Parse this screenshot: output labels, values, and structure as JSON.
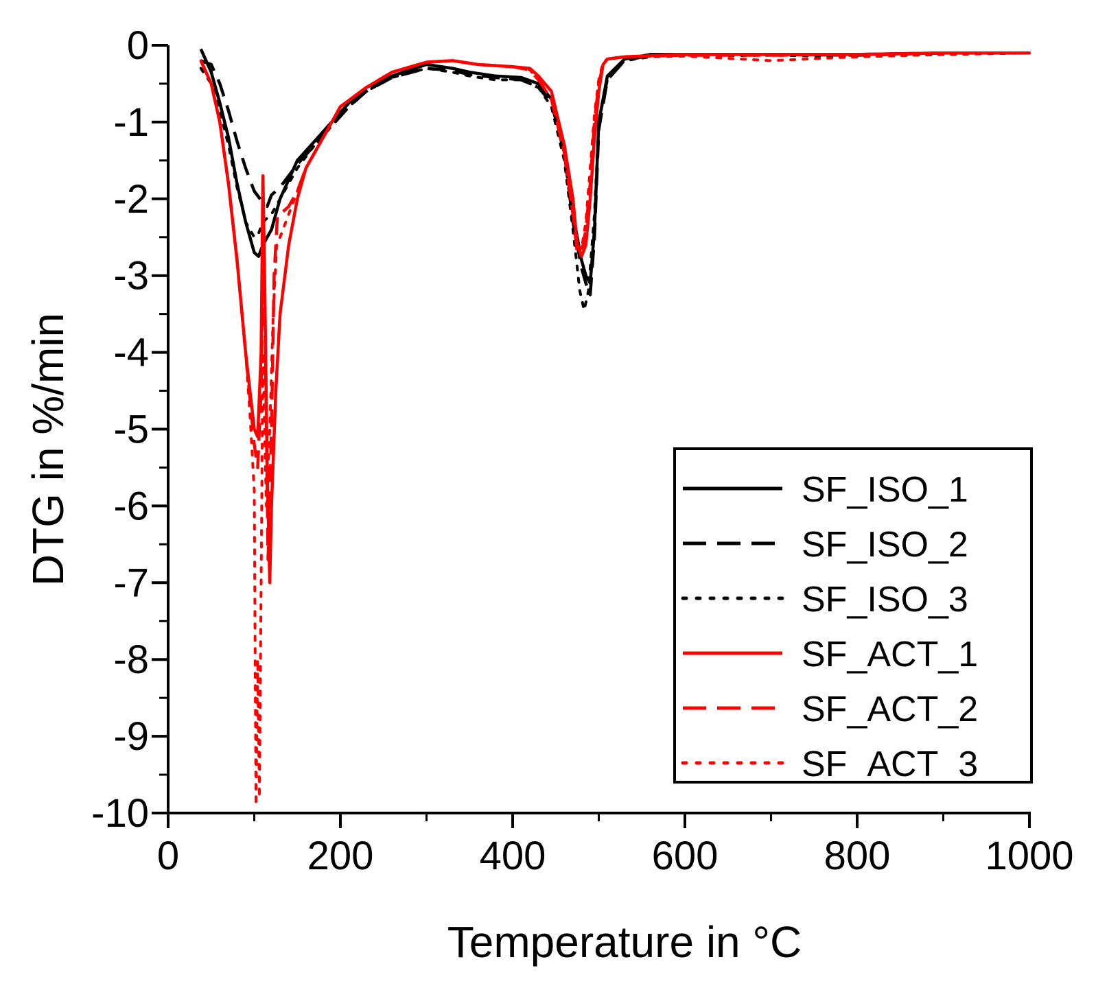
{
  "chart_data": {
    "type": "line",
    "title": "",
    "xlabel": "Temperature in °C",
    "ylabel": "DTG in %/min",
    "xlim": [
      0,
      1000
    ],
    "ylim": [
      -10,
      0
    ],
    "xticks": [
      0,
      200,
      400,
      600,
      800,
      1000
    ],
    "yticks": [
      0,
      -1,
      -2,
      -3,
      -4,
      -5,
      -6,
      -7,
      -8,
      -9,
      -10
    ],
    "xtick_labels": [
      "0",
      "200",
      "400",
      "600",
      "800",
      "1000"
    ],
    "ytick_labels": [
      "0",
      "-1",
      "-2",
      "-3",
      "-4",
      "-5",
      "-6",
      "-7",
      "-8",
      "-9",
      "-10"
    ],
    "grid": false,
    "legend_position": "bottom-right",
    "series": [
      {
        "name": "SF_ISO_1",
        "color": "#000000",
        "style": "solid",
        "x": [
          38,
          50,
          60,
          70,
          80,
          90,
          100,
          105,
          110,
          120,
          130,
          140,
          150,
          170,
          190,
          210,
          230,
          260,
          300,
          330,
          350,
          380,
          410,
          430,
          445,
          460,
          470,
          480,
          485,
          490,
          495,
          500,
          510,
          530,
          560,
          600,
          700,
          800,
          900,
          1000
        ],
        "y": [
          -0.05,
          -0.35,
          -0.75,
          -1.2,
          -1.8,
          -2.3,
          -2.7,
          -2.75,
          -2.6,
          -2.4,
          -2.0,
          -1.75,
          -1.5,
          -1.25,
          -1.0,
          -0.75,
          -0.55,
          -0.4,
          -0.25,
          -0.3,
          -0.35,
          -0.4,
          -0.42,
          -0.5,
          -0.7,
          -1.3,
          -2.2,
          -2.8,
          -3.0,
          -3.1,
          -2.4,
          -1.0,
          -0.4,
          -0.18,
          -0.12,
          -0.12,
          -0.12,
          -0.12,
          -0.1,
          -0.1
        ]
      },
      {
        "name": "SF_ISO_2",
        "color": "#000000",
        "style": "dashed",
        "x": [
          38,
          50,
          60,
          70,
          80,
          90,
          100,
          110,
          115,
          120,
          130,
          140,
          150,
          170,
          190,
          210,
          230,
          260,
          300,
          330,
          350,
          380,
          410,
          430,
          445,
          460,
          470,
          480,
          485,
          490,
          495,
          500,
          510,
          530,
          560,
          600,
          700,
          800,
          900,
          1000
        ],
        "y": [
          -0.2,
          -0.25,
          -0.5,
          -0.85,
          -1.25,
          -1.6,
          -1.9,
          -2.05,
          -2.1,
          -1.95,
          -1.85,
          -1.7,
          -1.55,
          -1.3,
          -1.05,
          -0.8,
          -0.6,
          -0.42,
          -0.3,
          -0.33,
          -0.38,
          -0.42,
          -0.45,
          -0.55,
          -0.75,
          -1.4,
          -2.3,
          -2.9,
          -3.1,
          -3.25,
          -2.5,
          -1.1,
          -0.45,
          -0.2,
          -0.13,
          -0.12,
          -0.12,
          -0.13,
          -0.1,
          -0.1
        ]
      },
      {
        "name": "SF_ISO_3",
        "color": "#000000",
        "style": "dotted",
        "x": [
          38,
          50,
          60,
          70,
          80,
          90,
          100,
          105,
          110,
          120,
          130,
          140,
          150,
          170,
          190,
          210,
          230,
          260,
          300,
          330,
          350,
          380,
          410,
          430,
          445,
          460,
          470,
          478,
          483,
          488,
          495,
          500,
          510,
          530,
          560,
          600,
          700,
          800,
          900,
          1000
        ],
        "y": [
          -0.3,
          -0.5,
          -0.85,
          -1.3,
          -1.85,
          -2.3,
          -2.5,
          -2.45,
          -2.3,
          -2.2,
          -2.0,
          -1.8,
          -1.6,
          -1.3,
          -1.05,
          -0.8,
          -0.6,
          -0.42,
          -0.3,
          -0.35,
          -0.4,
          -0.45,
          -0.45,
          -0.55,
          -0.8,
          -1.5,
          -2.4,
          -3.2,
          -3.45,
          -3.2,
          -2.2,
          -1.0,
          -0.45,
          -0.2,
          -0.15,
          -0.14,
          -0.13,
          -0.15,
          -0.12,
          -0.1
        ]
      },
      {
        "name": "SF_ACT_1",
        "color": "#ff0000",
        "style": "solid",
        "x": [
          38,
          50,
          60,
          70,
          80,
          90,
          95,
          100,
          104,
          108,
          110,
          112,
          115,
          118,
          120,
          125,
          130,
          140,
          150,
          160,
          180,
          200,
          230,
          260,
          300,
          330,
          360,
          400,
          420,
          430,
          445,
          460,
          470,
          475,
          480,
          485,
          490,
          495,
          500,
          505,
          510,
          530,
          600,
          700,
          800,
          900,
          1000
        ],
        "y": [
          -0.2,
          -0.5,
          -1.0,
          -1.8,
          -2.8,
          -4.0,
          -4.5,
          -5.0,
          -5.1,
          -4.0,
          -1.7,
          -3.0,
          -5.5,
          -7.0,
          -6.0,
          -4.5,
          -3.5,
          -2.6,
          -2.0,
          -1.6,
          -1.2,
          -0.8,
          -0.55,
          -0.35,
          -0.22,
          -0.2,
          -0.25,
          -0.28,
          -0.3,
          -0.4,
          -0.6,
          -1.3,
          -2.0,
          -2.6,
          -2.75,
          -2.6,
          -2.0,
          -1.2,
          -0.6,
          -0.25,
          -0.18,
          -0.15,
          -0.12,
          -0.12,
          -0.12,
          -0.1,
          -0.1
        ]
      },
      {
        "name": "SF_ACT_2",
        "color": "#ff0000",
        "style": "dashed",
        "x": [
          38,
          50,
          60,
          70,
          80,
          90,
          95,
          100,
          104,
          108,
          110,
          113,
          116,
          120,
          123,
          127,
          130,
          140,
          150,
          160,
          180,
          200,
          230,
          260,
          300,
          330,
          360,
          400,
          420,
          430,
          445,
          460,
          470,
          475,
          480,
          485,
          490,
          495,
          500,
          505,
          510,
          530,
          600,
          700,
          800,
          900,
          1000
        ],
        "y": [
          -0.2,
          -0.5,
          -1.0,
          -1.8,
          -2.8,
          -4.0,
          -4.6,
          -5.2,
          -5.5,
          -4.5,
          -2.5,
          -4.0,
          -6.7,
          -5.0,
          -3.0,
          -2.2,
          -2.2,
          -2.1,
          -1.9,
          -1.6,
          -1.2,
          -0.8,
          -0.55,
          -0.35,
          -0.22,
          -0.2,
          -0.25,
          -0.28,
          -0.32,
          -0.45,
          -0.7,
          -1.4,
          -2.2,
          -2.7,
          -2.7,
          -2.4,
          -1.8,
          -1.0,
          -0.5,
          -0.25,
          -0.18,
          -0.15,
          -0.13,
          -0.13,
          -0.12,
          -0.1,
          -0.1
        ]
      },
      {
        "name": "SF_ACT_3",
        "color": "#ff0000",
        "style": "dotted",
        "x": [
          38,
          50,
          60,
          70,
          80,
          90,
          95,
          100,
          102,
          104,
          106,
          108,
          110,
          114,
          118,
          122,
          126,
          130,
          140,
          150,
          160,
          180,
          200,
          230,
          260,
          300,
          330,
          360,
          400,
          420,
          430,
          445,
          460,
          470,
          475,
          480,
          485,
          490,
          495,
          500,
          505,
          510,
          530,
          600,
          700,
          800,
          900,
          1000
        ],
        "y": [
          -0.2,
          -0.5,
          -1.0,
          -1.8,
          -2.8,
          -4.0,
          -4.8,
          -5.8,
          -9.9,
          -8.0,
          -9.8,
          -7.0,
          -4.0,
          -6.0,
          -5.0,
          -3.5,
          -2.6,
          -2.5,
          -2.2,
          -1.9,
          -1.6,
          -1.2,
          -0.8,
          -0.55,
          -0.35,
          -0.22,
          -0.2,
          -0.25,
          -0.28,
          -0.32,
          -0.45,
          -0.7,
          -1.4,
          -2.2,
          -2.6,
          -2.65,
          -2.3,
          -1.6,
          -0.9,
          -0.45,
          -0.22,
          -0.18,
          -0.15,
          -0.14,
          -0.2,
          -0.15,
          -0.12,
          -0.1
        ]
      }
    ]
  }
}
